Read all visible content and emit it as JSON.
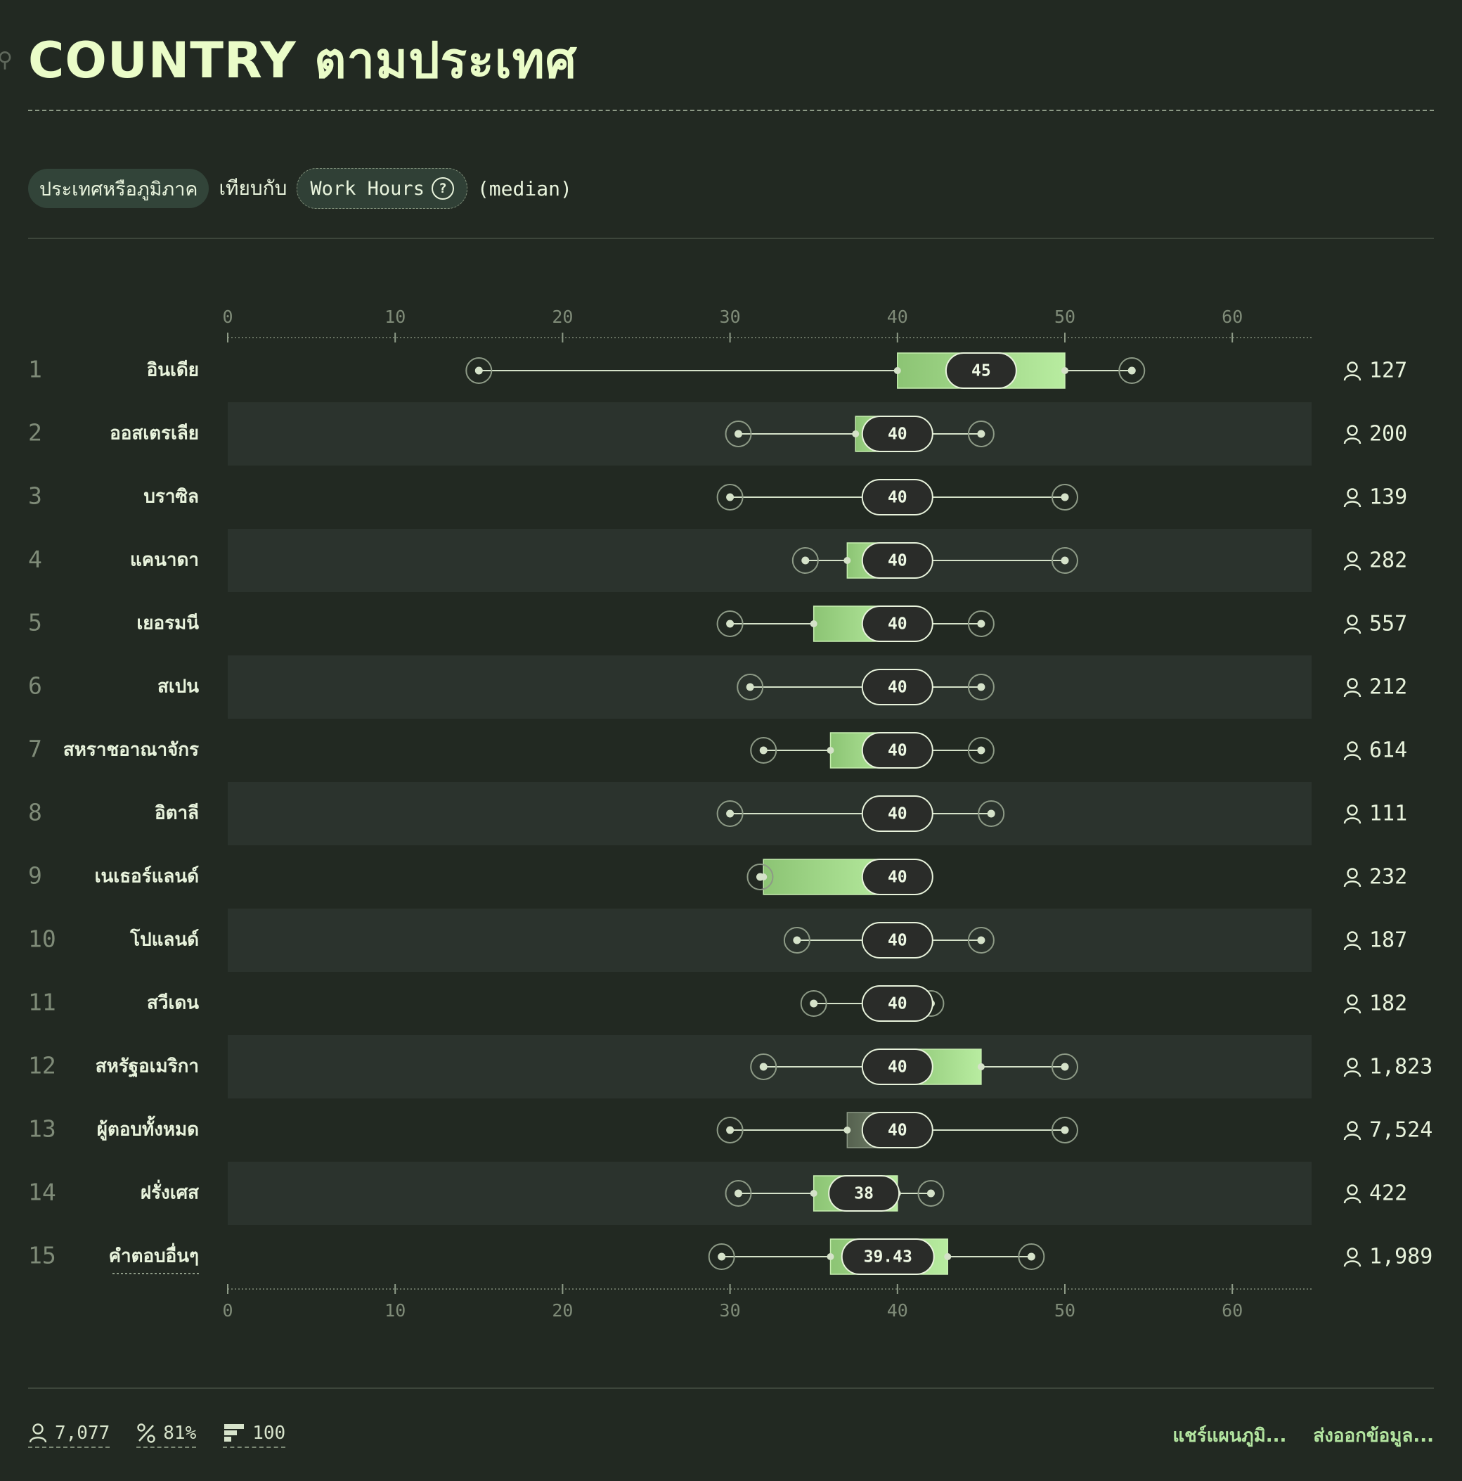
{
  "header": {
    "title": "COUNTRY ตามประเทศ"
  },
  "controls": {
    "group_label": "ประเทศหรือภูมิภาค",
    "compare_label": "เทียบกับ",
    "metric_label": "Work Hours",
    "stat_label": "(median)"
  },
  "chart_data": {
    "type": "box",
    "title": "",
    "xlabel": "",
    "ylabel": "",
    "xlim": [
      0,
      65
    ],
    "ticks": [
      0,
      10,
      20,
      30,
      40,
      50,
      60
    ],
    "tick_labels": [
      "0",
      "10",
      "20",
      "30",
      "40",
      "50",
      "60"
    ],
    "grid": false,
    "legend": "none",
    "colors": {
      "box_start": "#8cc474",
      "box_end": "#b8eca0",
      "whisker": "#d5e2c9",
      "median_pill": "#2a2c29",
      "row_band": "#2b332d"
    },
    "rows": [
      {
        "rank": "1",
        "label": "อินเดีย",
        "whisker_low": 15,
        "q1": 40,
        "median": 45,
        "q3": 50,
        "whisker_high": 54,
        "median_label": "45",
        "count": "127"
      },
      {
        "rank": "2",
        "label": "ออสเตรเลีย",
        "whisker_low": 30.5,
        "q1": 37.5,
        "median": 40,
        "q3": 40,
        "whisker_high": 45,
        "median_label": "40",
        "count": "200"
      },
      {
        "rank": "3",
        "label": "บราซิล",
        "whisker_low": 30,
        "q1": 40,
        "median": 40,
        "q3": 40,
        "whisker_high": 50,
        "median_label": "40",
        "count": "139"
      },
      {
        "rank": "4",
        "label": "แคนาดา",
        "whisker_low": 34.5,
        "q1": 37,
        "median": 40,
        "q3": 40,
        "whisker_high": 50,
        "median_label": "40",
        "count": "282"
      },
      {
        "rank": "5",
        "label": "เยอรมนี",
        "whisker_low": 30,
        "q1": 35,
        "median": 40,
        "q3": 40,
        "whisker_high": 45,
        "median_label": "40",
        "count": "557"
      },
      {
        "rank": "6",
        "label": "สเปน",
        "whisker_low": 31.2,
        "q1": 40,
        "median": 40,
        "q3": 40,
        "whisker_high": 45,
        "median_label": "40",
        "count": "212"
      },
      {
        "rank": "7",
        "label": "สหราชอาณาจักร",
        "whisker_low": 32,
        "q1": 36,
        "median": 40,
        "q3": 40,
        "whisker_high": 45,
        "median_label": "40",
        "count": "614"
      },
      {
        "rank": "8",
        "label": "อิตาลี",
        "whisker_low": 30,
        "q1": 40,
        "median": 40,
        "q3": 40,
        "whisker_high": 45.6,
        "median_label": "40",
        "count": "111"
      },
      {
        "rank": "9",
        "label": "เนเธอร์แลนด์",
        "whisker_low": 31.8,
        "q1": 32,
        "median": 40,
        "q3": 40,
        "whisker_high": 40,
        "median_label": "40",
        "count": "232"
      },
      {
        "rank": "10",
        "label": "โปแลนด์",
        "whisker_low": 34,
        "q1": 40,
        "median": 40,
        "q3": 40,
        "whisker_high": 45,
        "median_label": "40",
        "count": "187"
      },
      {
        "rank": "11",
        "label": "สวีเดน",
        "whisker_low": 35,
        "q1": 40,
        "median": 40,
        "q3": 40,
        "whisker_high": 42,
        "median_label": "40",
        "count": "182"
      },
      {
        "rank": "12",
        "label": "สหรัฐอเมริกา",
        "whisker_low": 32,
        "q1": 40,
        "median": 40,
        "q3": 45,
        "whisker_high": 50,
        "median_label": "40",
        "count": "1,823"
      },
      {
        "rank": "13",
        "label": "ผู้ตอบทั้งหมด",
        "whisker_low": 30,
        "q1": 37,
        "median": 40,
        "q3": 40,
        "whisker_high": 50,
        "median_label": "40",
        "count": "7,524",
        "muted": true
      },
      {
        "rank": "14",
        "label": "ฝรั่งเศส",
        "whisker_low": 30.5,
        "q1": 35,
        "median": 38,
        "q3": 40,
        "whisker_high": 42,
        "median_label": "38",
        "count": "422"
      },
      {
        "rank": "15",
        "label": "คำตอบอื่นๆ",
        "whisker_low": 29.5,
        "q1": 36,
        "median": 39.43,
        "q3": 43,
        "whisker_high": 48,
        "median_label": "39.43",
        "count": "1,989",
        "underlined": true
      }
    ]
  },
  "footer": {
    "respondents": "7,077",
    "percent": "81%",
    "sample": "100",
    "share_label": "แชร์แผนภูมิ...",
    "export_label": "ส่งออกข้อมูล..."
  }
}
